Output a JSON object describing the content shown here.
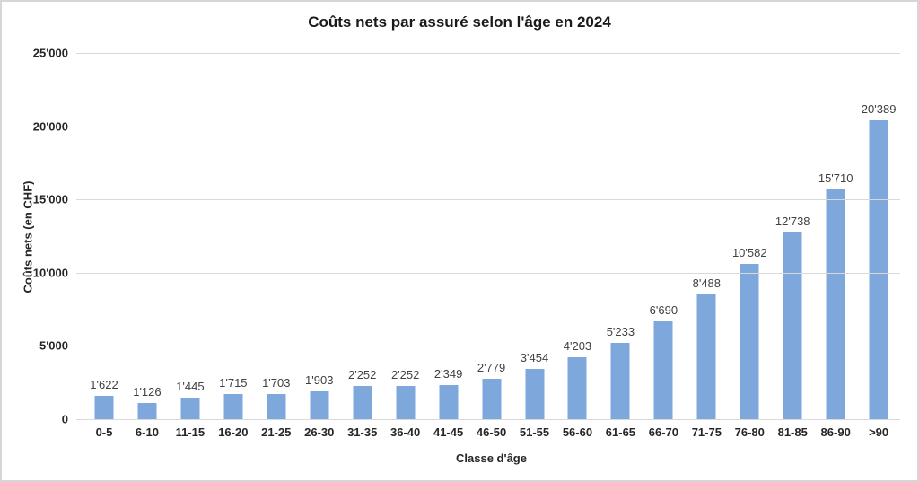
{
  "chart_data": {
    "type": "bar",
    "title": "Coûts nets par assuré selon l'âge en 2024",
    "xlabel": "Classe d'âge",
    "ylabel": "Coûts nets (en CHF)",
    "categories": [
      "0-5",
      "6-10",
      "11-15",
      "16-20",
      "21-25",
      "26-30",
      "31-35",
      "36-40",
      "41-45",
      "46-50",
      "51-55",
      "56-60",
      "61-65",
      "66-70",
      "71-75",
      "76-80",
      "81-85",
      "86-90",
      ">90"
    ],
    "values": [
      1622,
      1126,
      1445,
      1715,
      1703,
      1903,
      2252,
      2252,
      2349,
      2779,
      3454,
      4203,
      5233,
      6690,
      8488,
      10582,
      12738,
      15710,
      20389
    ],
    "value_labels": [
      "1'622",
      "1'126",
      "1'445",
      "1'715",
      "1'703",
      "1'903",
      "2'252",
      "2'252",
      "2'349",
      "2'779",
      "3'454",
      "4'203",
      "5'233",
      "6'690",
      "8'488",
      "10'582",
      "12'738",
      "15'710",
      "20'389"
    ],
    "ylim": [
      0,
      25000
    ],
    "yticks": [
      0,
      5000,
      10000,
      15000,
      20000,
      25000
    ],
    "ytick_labels": [
      "0",
      "5'000",
      "10'000",
      "15'000",
      "20'000",
      "25'000"
    ],
    "grid": "horizontal",
    "legend": "none",
    "bar_color": "#7ea8dc",
    "gridline_color": "#d9d9d9",
    "value_label_color": "#404040",
    "axis_text_color": "#262626"
  }
}
